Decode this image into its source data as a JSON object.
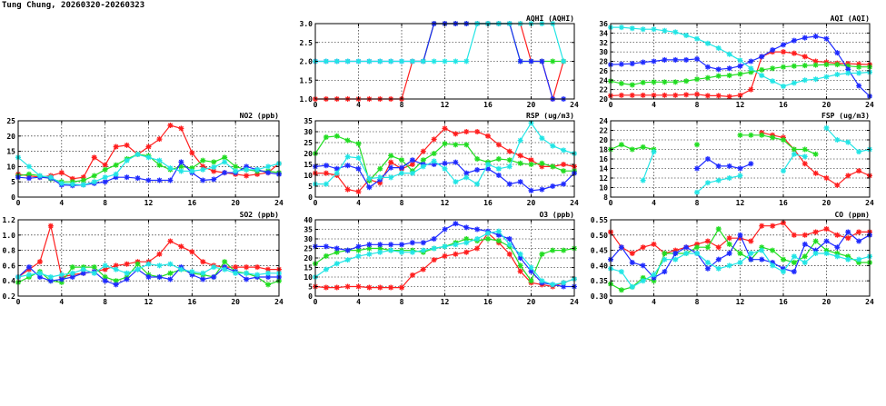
{
  "page": {
    "title": "Tung Chung, 20260320-20260323"
  },
  "colors": {
    "red": "#ff1f1f",
    "green": "#22dd22",
    "blue": "#1f2bff",
    "cyan": "#22e5e5"
  },
  "chart_data": [
    {
      "id": "aqhi",
      "type": "line",
      "title": "AQHI (AQHI)",
      "xlim": [
        0,
        24
      ],
      "xticks": [
        0,
        4,
        8,
        12,
        16,
        20,
        24
      ],
      "ylim": [
        1.0,
        3.0
      ],
      "yticks": [
        "1.0",
        "1.5",
        "2.0",
        "2.5",
        "3.0"
      ],
      "grid": true,
      "series": [
        {
          "color": "red",
          "values": [
            1,
            1,
            1,
            1,
            1,
            1,
            1,
            1,
            1,
            2,
            2,
            3,
            3,
            3,
            3,
            3,
            3,
            3,
            3,
            3,
            2,
            2,
            1,
            2,
            null
          ]
        },
        {
          "color": "green",
          "values": [
            null,
            null,
            null,
            null,
            null,
            null,
            null,
            null,
            null,
            null,
            2,
            3,
            3,
            3,
            3,
            3,
            3,
            3,
            3,
            2,
            2,
            2,
            2,
            2,
            null
          ]
        },
        {
          "color": "blue",
          "values": [
            2,
            2,
            2,
            2,
            2,
            2,
            2,
            2,
            2,
            2,
            2,
            3,
            3,
            3,
            3,
            3,
            3,
            3,
            3,
            2,
            2,
            2,
            1,
            1,
            null
          ]
        },
        {
          "color": "cyan",
          "values": [
            2,
            2,
            2,
            2,
            2,
            2,
            2,
            2,
            2,
            2,
            2,
            2,
            2,
            2,
            2,
            3,
            3,
            3,
            3,
            3,
            3,
            3,
            3,
            2,
            null
          ]
        }
      ]
    },
    {
      "id": "aqi",
      "type": "line",
      "title": "AQI (AQI)",
      "xlim": [
        0,
        24
      ],
      "xticks": [
        0,
        4,
        8,
        12,
        16,
        20,
        24
      ],
      "ylim": [
        20,
        36
      ],
      "yticks": [
        "20",
        "22",
        "24",
        "26",
        "28",
        "30",
        "32",
        "34",
        "36"
      ],
      "grid": true,
      "series": [
        {
          "color": "red",
          "values": [
            20.7,
            20.8,
            20.8,
            20.8,
            20.8,
            20.8,
            20.8,
            20.9,
            21,
            20.7,
            20.7,
            20.5,
            20.8,
            22,
            29,
            30,
            30,
            29.7,
            29,
            28,
            27.8,
            27.6,
            27.5,
            27.4,
            27.3
          ]
        },
        {
          "color": "green",
          "values": [
            23.8,
            23.3,
            23,
            23.5,
            23.6,
            23.6,
            23.6,
            23.8,
            24.2,
            24.5,
            24.9,
            25,
            25.3,
            25.7,
            26.2,
            26.5,
            26.8,
            27,
            27.1,
            27.2,
            27.3,
            27.3,
            27,
            26.8,
            26.8
          ]
        },
        {
          "color": "blue",
          "values": [
            27.3,
            27.4,
            27.5,
            27.8,
            28,
            28.3,
            28.3,
            28.3,
            28.5,
            26.8,
            26.3,
            26.5,
            27,
            28,
            29,
            30.4,
            31.5,
            32.4,
            33,
            33.3,
            32.8,
            29.8,
            26.3,
            22.8,
            20.6
          ]
        },
        {
          "color": "cyan",
          "values": [
            35.2,
            35.2,
            35,
            34.8,
            34.8,
            34.5,
            34.2,
            33.5,
            32.8,
            31.8,
            30.8,
            29.5,
            28.2,
            26.5,
            25,
            23.8,
            22.7,
            23.4,
            24,
            24.2,
            24.7,
            25.2,
            25.5,
            25.5,
            25.7
          ]
        }
      ]
    },
    {
      "id": "no2",
      "type": "line",
      "title": "NO2 (ppb)",
      "xlim": [
        0,
        24
      ],
      "xticks": [
        0,
        4,
        8,
        12,
        16,
        20,
        24
      ],
      "ylim": [
        0,
        25
      ],
      "yticks": [
        "0",
        "5",
        "10",
        "15",
        "20",
        "25"
      ],
      "grid": true,
      "series": [
        {
          "color": "red",
          "values": [
            7.5,
            7,
            6.5,
            7,
            8,
            6,
            6.5,
            13,
            10.5,
            16.5,
            17,
            14,
            16.5,
            19,
            23.5,
            22.5,
            14.5,
            10,
            8.5,
            8,
            7.5,
            7,
            7.5,
            8,
            11
          ]
        },
        {
          "color": "green",
          "values": [
            7,
            7.5,
            7,
            6,
            5,
            5,
            5.5,
            7,
            9,
            10.5,
            12.5,
            14,
            13.5,
            10.5,
            9,
            10,
            9.5,
            12,
            11.5,
            13,
            10,
            9,
            8.5,
            8.5,
            8
          ]
        },
        {
          "color": "blue",
          "values": [
            6.5,
            6.2,
            6.5,
            6.2,
            4,
            3.8,
            4,
            4.5,
            5,
            6.5,
            6.5,
            6.2,
            5.5,
            5.5,
            5.5,
            11.5,
            8,
            5.5,
            5.8,
            8,
            8,
            10,
            9,
            8,
            7.5
          ]
        },
        {
          "color": "cyan",
          "values": [
            13,
            10,
            7,
            6.5,
            4.5,
            4.2,
            4,
            5,
            6.5,
            7.5,
            12,
            14,
            13,
            12,
            9.5,
            8.5,
            8.5,
            9,
            9.8,
            11.5,
            8.5,
            9,
            9,
            10,
            11
          ]
        }
      ]
    },
    {
      "id": "rsp",
      "type": "line",
      "title": "RSP (ug/m3)",
      "xlim": [
        0,
        24
      ],
      "xticks": [
        0,
        4,
        8,
        12,
        16,
        20,
        24
      ],
      "ylim": [
        0,
        35
      ],
      "yticks": [
        "0",
        "5",
        "10",
        "15",
        "20",
        "25",
        "30",
        "35"
      ],
      "grid": true,
      "series": [
        {
          "color": "red",
          "values": [
            11,
            11,
            10,
            3.5,
            2.5,
            8,
            6.5,
            16,
            13,
            15,
            21,
            26.5,
            31.5,
            29,
            30,
            30,
            28,
            24,
            21,
            19,
            17,
            14,
            14,
            15,
            14
          ]
        },
        {
          "color": "green",
          "values": [
            20,
            27.5,
            28,
            26,
            24.5,
            7.5,
            13,
            19,
            17,
            12,
            17,
            20,
            24.5,
            24,
            24,
            17.5,
            16,
            17.5,
            17,
            15.5,
            15,
            15.5,
            14,
            12,
            12
          ]
        },
        {
          "color": "blue",
          "values": [
            14,
            14.5,
            13,
            14.5,
            13,
            4.5,
            8,
            13.5,
            13.5,
            17,
            15,
            15,
            15.5,
            16,
            11,
            12.5,
            13,
            10,
            6,
            7,
            3,
            3.5,
            5,
            6,
            11
          ]
        },
        {
          "color": "cyan",
          "values": [
            6,
            6,
            11,
            18.5,
            18,
            8.5,
            9,
            9,
            11,
            11,
            14,
            16.5,
            13,
            7,
            9,
            6,
            15,
            13,
            14,
            26,
            34,
            27,
            23.5,
            21.5,
            20
          ]
        }
      ]
    },
    {
      "id": "fsp",
      "type": "line",
      "title": "FSP (ug/m3)",
      "xlim": [
        0,
        24
      ],
      "xticks": [
        0,
        4,
        8,
        12,
        16,
        20,
        24
      ],
      "ylim": [
        8,
        24
      ],
      "yticks": [
        "8",
        "10",
        "12",
        "14",
        "16",
        "18",
        "20",
        "22",
        "24"
      ],
      "grid": true,
      "series": [
        {
          "color": "red",
          "values": [
            null,
            null,
            null,
            null,
            null,
            null,
            null,
            null,
            null,
            null,
            null,
            null,
            null,
            null,
            21.5,
            21,
            20.5,
            18,
            15,
            13,
            12,
            10.5,
            12.5,
            13.5,
            12.5
          ]
        },
        {
          "color": "green",
          "values": [
            18,
            19,
            18,
            18.5,
            18,
            null,
            null,
            null,
            19,
            null,
            null,
            null,
            21,
            21,
            21,
            20.5,
            20,
            18,
            18,
            17,
            null,
            null,
            null,
            null,
            null
          ]
        },
        {
          "color": "blue",
          "values": [
            null,
            null,
            null,
            null,
            null,
            null,
            null,
            null,
            14,
            16,
            14.5,
            14.5,
            14,
            15,
            null,
            null,
            null,
            null,
            null,
            null,
            null,
            null,
            null,
            null,
            null
          ]
        },
        {
          "color": "cyan",
          "values": [
            null,
            null,
            null,
            11.5,
            17.5,
            null,
            null,
            null,
            9,
            11,
            11.5,
            12,
            12.5,
            null,
            null,
            null,
            13.5,
            17,
            16.5,
            null,
            22.5,
            20,
            19.5,
            17.5,
            18
          ]
        }
      ]
    },
    {
      "id": "so2",
      "type": "line",
      "title": "SO2 (ppb)",
      "xlim": [
        0,
        24
      ],
      "xticks": [
        0,
        4,
        8,
        12,
        16,
        20,
        24
      ],
      "ylim": [
        0.2,
        1.2
      ],
      "yticks": [
        "0.2",
        "0.4",
        "0.6",
        "0.8",
        "1.0",
        "1.2"
      ],
      "grid": true,
      "series": [
        {
          "color": "red",
          "values": [
            0.45,
            0.55,
            0.65,
            1.12,
            0.45,
            0.48,
            0.5,
            0.52,
            0.55,
            0.6,
            0.62,
            0.65,
            0.65,
            0.75,
            0.92,
            0.85,
            0.78,
            0.65,
            0.6,
            0.58,
            0.58,
            0.58,
            0.58,
            0.55,
            0.55
          ]
        },
        {
          "color": "green",
          "values": [
            0.38,
            0.45,
            0.52,
            0.4,
            0.38,
            0.58,
            0.58,
            0.58,
            0.45,
            0.4,
            0.45,
            0.62,
            0.48,
            0.45,
            0.5,
            0.55,
            0.5,
            0.48,
            0.45,
            0.65,
            0.52,
            0.5,
            0.45,
            0.35,
            0.4
          ]
        },
        {
          "color": "blue",
          "values": [
            0.45,
            0.58,
            0.45,
            0.4,
            0.42,
            0.45,
            0.5,
            0.52,
            0.4,
            0.35,
            0.42,
            0.55,
            0.45,
            0.45,
            0.42,
            0.58,
            0.48,
            0.42,
            0.45,
            0.58,
            0.52,
            0.42,
            0.45,
            0.45,
            0.45
          ]
        },
        {
          "color": "cyan",
          "values": [
            0.45,
            0.48,
            0.5,
            0.45,
            0.48,
            0.5,
            0.55,
            0.5,
            0.6,
            0.55,
            0.5,
            0.55,
            0.62,
            0.6,
            0.62,
            0.55,
            0.52,
            0.5,
            0.58,
            0.55,
            0.5,
            0.5,
            0.48,
            0.5,
            0.5
          ]
        }
      ]
    },
    {
      "id": "o3",
      "type": "line",
      "title": "O3 (ppb)",
      "xlim": [
        0,
        24
      ],
      "xticks": [
        0,
        4,
        8,
        12,
        16,
        20,
        24
      ],
      "ylim": [
        0,
        40
      ],
      "yticks": [
        "0",
        "5",
        "10",
        "15",
        "20",
        "25",
        "30",
        "35",
        "40"
      ],
      "grid": true,
      "series": [
        {
          "color": "red",
          "values": [
            5,
            4.5,
            4.5,
            5,
            5,
            4.5,
            4.5,
            4.5,
            4.5,
            11,
            14,
            19,
            21,
            22,
            23,
            25,
            33,
            28,
            22,
            13,
            7,
            6,
            5,
            7,
            9
          ]
        },
        {
          "color": "green",
          "values": [
            17,
            21,
            23,
            24,
            24,
            25,
            25,
            24,
            24,
            24,
            23,
            25,
            26,
            28,
            30,
            29,
            30,
            29,
            26,
            16,
            8,
            22,
            24,
            24,
            25
          ]
        },
        {
          "color": "blue",
          "values": [
            26,
            26,
            25,
            24,
            26,
            27,
            27,
            27,
            27,
            28,
            28,
            30,
            35,
            38,
            36,
            35,
            34,
            32,
            30,
            20,
            13,
            7,
            6,
            5,
            5
          ]
        },
        {
          "color": "cyan",
          "values": [
            10,
            14,
            17,
            19,
            21,
            22,
            23,
            24,
            23,
            23,
            24,
            25,
            26,
            27,
            28,
            30,
            33,
            34,
            27,
            22,
            15,
            8,
            6,
            7,
            9
          ]
        }
      ]
    },
    {
      "id": "co",
      "type": "line",
      "title": "CO (ppm)",
      "xlim": [
        0,
        24
      ],
      "xticks": [
        0,
        4,
        8,
        12,
        16,
        20,
        24
      ],
      "ylim": [
        0.3,
        0.55
      ],
      "yticks": [
        "0.30",
        "0.35",
        "0.40",
        "0.45",
        "0.50",
        "0.55"
      ],
      "grid": true,
      "series": [
        {
          "color": "red",
          "values": [
            0.51,
            0.46,
            0.44,
            0.46,
            0.47,
            0.44,
            0.45,
            0.46,
            0.47,
            0.48,
            0.46,
            0.49,
            0.49,
            0.48,
            0.53,
            0.53,
            0.54,
            0.5,
            0.5,
            0.51,
            0.52,
            0.5,
            0.49,
            0.51,
            0.51
          ]
        },
        {
          "color": "green",
          "values": [
            0.34,
            0.32,
            0.33,
            0.36,
            0.35,
            0.44,
            0.44,
            0.44,
            0.46,
            0.46,
            0.52,
            0.47,
            0.44,
            0.42,
            0.46,
            0.45,
            0.42,
            0.41,
            0.43,
            0.48,
            0.45,
            0.44,
            0.43,
            0.41,
            0.41
          ]
        },
        {
          "color": "blue",
          "values": [
            0.42,
            0.46,
            0.41,
            0.4,
            0.36,
            0.38,
            0.44,
            0.46,
            0.44,
            0.39,
            0.42,
            0.44,
            0.5,
            0.42,
            0.42,
            0.41,
            0.39,
            0.38,
            0.47,
            0.45,
            0.48,
            0.46,
            0.51,
            0.48,
            0.5
          ]
        },
        {
          "color": "cyan",
          "values": [
            0.39,
            0.38,
            0.33,
            0.35,
            0.37,
            0.42,
            0.42,
            0.44,
            0.44,
            0.41,
            0.39,
            0.4,
            0.41,
            0.44,
            0.45,
            0.4,
            0.38,
            0.43,
            0.41,
            0.44,
            0.44,
            0.43,
            0.42,
            0.42,
            0.43
          ]
        }
      ]
    }
  ]
}
